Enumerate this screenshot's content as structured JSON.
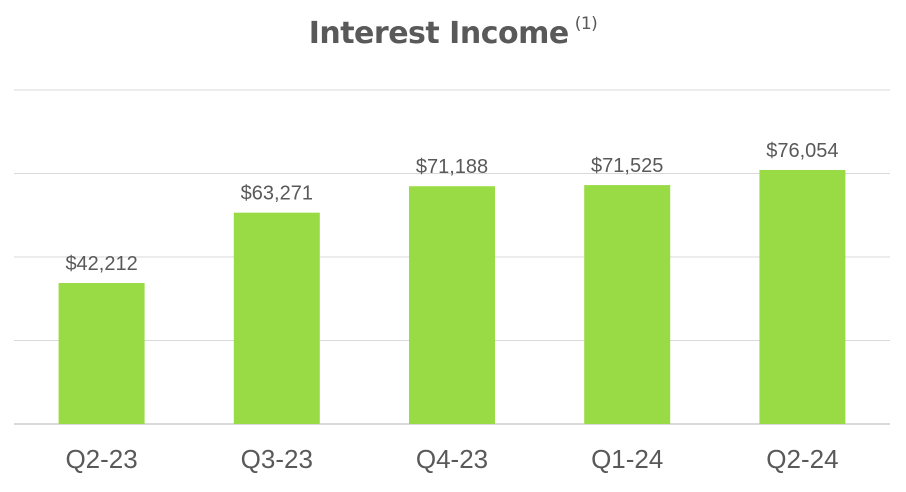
{
  "chart_data": {
    "type": "bar",
    "title": "Interest Income",
    "title_footnote": "(1)",
    "categories": [
      "Q2-23",
      "Q3-23",
      "Q4-23",
      "Q1-24",
      "Q2-24"
    ],
    "values": [
      42212,
      63271,
      71188,
      71525,
      76054
    ],
    "data_labels": [
      "$42,212",
      "$63,271",
      "$71,188",
      "$71,525",
      "$76,054"
    ],
    "xlabel": "",
    "ylabel": "",
    "ylim": [
      0,
      100000
    ],
    "grid": true,
    "legend": "none",
    "bar_color": "#99db44",
    "text_color": "#595959",
    "grid_color": "#d9d9d9"
  }
}
